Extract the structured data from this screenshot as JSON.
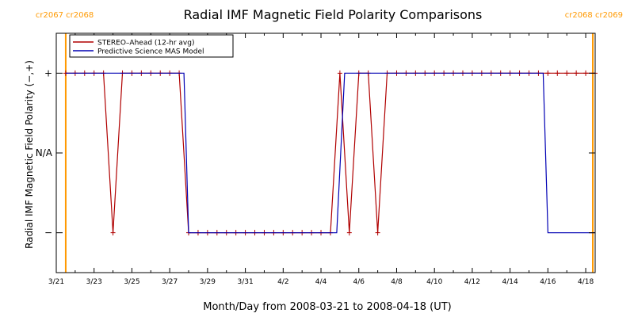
{
  "chart_data": {
    "type": "line",
    "title": "Radial IMF Magnetic Field Polarity Comparisons",
    "xlabel": "Month/Day from 2008-03-21 to 2008-04-18 (UT)",
    "ylabel": "Radial IMF Magnetic Field Polarity (−,+)",
    "xlim": [
      "2008-03-21",
      "2008-04-18T12:00"
    ],
    "ylim": [
      -1.5,
      1.5
    ],
    "x_ticks": [
      {
        "x": "2008-03-21",
        "label": "3/21"
      },
      {
        "x": "2008-03-23",
        "label": "3/23"
      },
      {
        "x": "2008-03-25",
        "label": "3/25"
      },
      {
        "x": "2008-03-27",
        "label": "3/27"
      },
      {
        "x": "2008-03-29",
        "label": "3/29"
      },
      {
        "x": "2008-03-31",
        "label": "3/31"
      },
      {
        "x": "2008-04-02",
        "label": "4/2"
      },
      {
        "x": "2008-04-04",
        "label": "4/4"
      },
      {
        "x": "2008-04-06",
        "label": "4/6"
      },
      {
        "x": "2008-04-08",
        "label": "4/8"
      },
      {
        "x": "2008-04-10",
        "label": "4/10"
      },
      {
        "x": "2008-04-12",
        "label": "4/12"
      },
      {
        "x": "2008-04-14",
        "label": "4/14"
      },
      {
        "x": "2008-04-16",
        "label": "4/16"
      },
      {
        "x": "2008-04-18",
        "label": "4/18"
      }
    ],
    "y_ticks": [
      {
        "y": 1,
        "label": "+"
      },
      {
        "y": 0,
        "label": "N/A"
      },
      {
        "y": -1,
        "label": "−"
      }
    ],
    "legend": {
      "position": "top-left"
    },
    "carrington_markers": [
      {
        "x": "2008-03-21T12:00",
        "labels": [
          "cr2067",
          "cr2068"
        ],
        "label_side": "left"
      },
      {
        "x": "2008-04-18T09:00",
        "labels": [
          "cr2068",
          "cr2069"
        ],
        "label_side": "right"
      }
    ],
    "colors": {
      "stereo": "#b00000",
      "model": "#0000b4",
      "marker": "#ff9900"
    },
    "series": [
      {
        "name": "STEREO–Ahead (12-hr avg)",
        "color": "#b00000",
        "markers": true,
        "points": [
          {
            "x": "2008-03-21T12:00",
            "y": 1
          },
          {
            "x": "2008-03-22T00:00",
            "y": 1
          },
          {
            "x": "2008-03-22T12:00",
            "y": 1
          },
          {
            "x": "2008-03-23T00:00",
            "y": 1
          },
          {
            "x": "2008-03-23T12:00",
            "y": 1
          },
          {
            "x": "2008-03-24T00:00",
            "y": -1
          },
          {
            "x": "2008-03-24T12:00",
            "y": 1
          },
          {
            "x": "2008-03-25T00:00",
            "y": 1
          },
          {
            "x": "2008-03-25T12:00",
            "y": 1
          },
          {
            "x": "2008-03-26T00:00",
            "y": 1
          },
          {
            "x": "2008-03-26T12:00",
            "y": 1
          },
          {
            "x": "2008-03-27T00:00",
            "y": 1
          },
          {
            "x": "2008-03-27T12:00",
            "y": 1
          },
          {
            "x": "2008-03-28T00:00",
            "y": -1
          },
          {
            "x": "2008-03-28T12:00",
            "y": -1
          },
          {
            "x": "2008-03-29T00:00",
            "y": -1
          },
          {
            "x": "2008-03-29T12:00",
            "y": -1
          },
          {
            "x": "2008-03-30T00:00",
            "y": -1
          },
          {
            "x": "2008-03-30T12:00",
            "y": -1
          },
          {
            "x": "2008-03-31T00:00",
            "y": -1
          },
          {
            "x": "2008-03-31T12:00",
            "y": -1
          },
          {
            "x": "2008-04-01T00:00",
            "y": -1
          },
          {
            "x": "2008-04-01T12:00",
            "y": -1
          },
          {
            "x": "2008-04-02T00:00",
            "y": -1
          },
          {
            "x": "2008-04-02T12:00",
            "y": -1
          },
          {
            "x": "2008-04-03T00:00",
            "y": -1
          },
          {
            "x": "2008-04-03T12:00",
            "y": -1
          },
          {
            "x": "2008-04-04T00:00",
            "y": -1
          },
          {
            "x": "2008-04-04T12:00",
            "y": -1
          },
          {
            "x": "2008-04-05T00:00",
            "y": 1
          },
          {
            "x": "2008-04-05T12:00",
            "y": -1
          },
          {
            "x": "2008-04-06T00:00",
            "y": 1
          },
          {
            "x": "2008-04-06T12:00",
            "y": 1
          },
          {
            "x": "2008-04-07T00:00",
            "y": -1
          },
          {
            "x": "2008-04-07T12:00",
            "y": 1
          },
          {
            "x": "2008-04-08T00:00",
            "y": 1
          },
          {
            "x": "2008-04-08T12:00",
            "y": 1
          },
          {
            "x": "2008-04-09T00:00",
            "y": 1
          },
          {
            "x": "2008-04-09T12:00",
            "y": 1
          },
          {
            "x": "2008-04-10T00:00",
            "y": 1
          },
          {
            "x": "2008-04-10T12:00",
            "y": 1
          },
          {
            "x": "2008-04-11T00:00",
            "y": 1
          },
          {
            "x": "2008-04-11T12:00",
            "y": 1
          },
          {
            "x": "2008-04-12T00:00",
            "y": 1
          },
          {
            "x": "2008-04-12T12:00",
            "y": 1
          },
          {
            "x": "2008-04-13T00:00",
            "y": 1
          },
          {
            "x": "2008-04-13T12:00",
            "y": 1
          },
          {
            "x": "2008-04-14T00:00",
            "y": 1
          },
          {
            "x": "2008-04-14T12:00",
            "y": 1
          },
          {
            "x": "2008-04-15T00:00",
            "y": 1
          },
          {
            "x": "2008-04-15T12:00",
            "y": 1
          },
          {
            "x": "2008-04-16T00:00",
            "y": 1
          },
          {
            "x": "2008-04-16T12:00",
            "y": 1
          },
          {
            "x": "2008-04-17T00:00",
            "y": 1
          },
          {
            "x": "2008-04-17T12:00",
            "y": 1
          },
          {
            "x": "2008-04-18T00:00",
            "y": 1
          },
          {
            "x": "2008-04-18T12:00",
            "y": 1
          }
        ]
      },
      {
        "name": "Predictive Science MAS Model",
        "color": "#0000b4",
        "markers": false,
        "points": [
          {
            "x": "2008-03-21T12:00",
            "y": 1
          },
          {
            "x": "2008-03-27T18:00",
            "y": 1
          },
          {
            "x": "2008-03-28T00:00",
            "y": -1
          },
          {
            "x": "2008-04-04T20:00",
            "y": -1
          },
          {
            "x": "2008-04-05T06:00",
            "y": 1
          },
          {
            "x": "2008-04-15T18:00",
            "y": 1
          },
          {
            "x": "2008-04-16T00:00",
            "y": -1
          },
          {
            "x": "2008-04-18T12:00",
            "y": -1
          }
        ]
      }
    ]
  }
}
